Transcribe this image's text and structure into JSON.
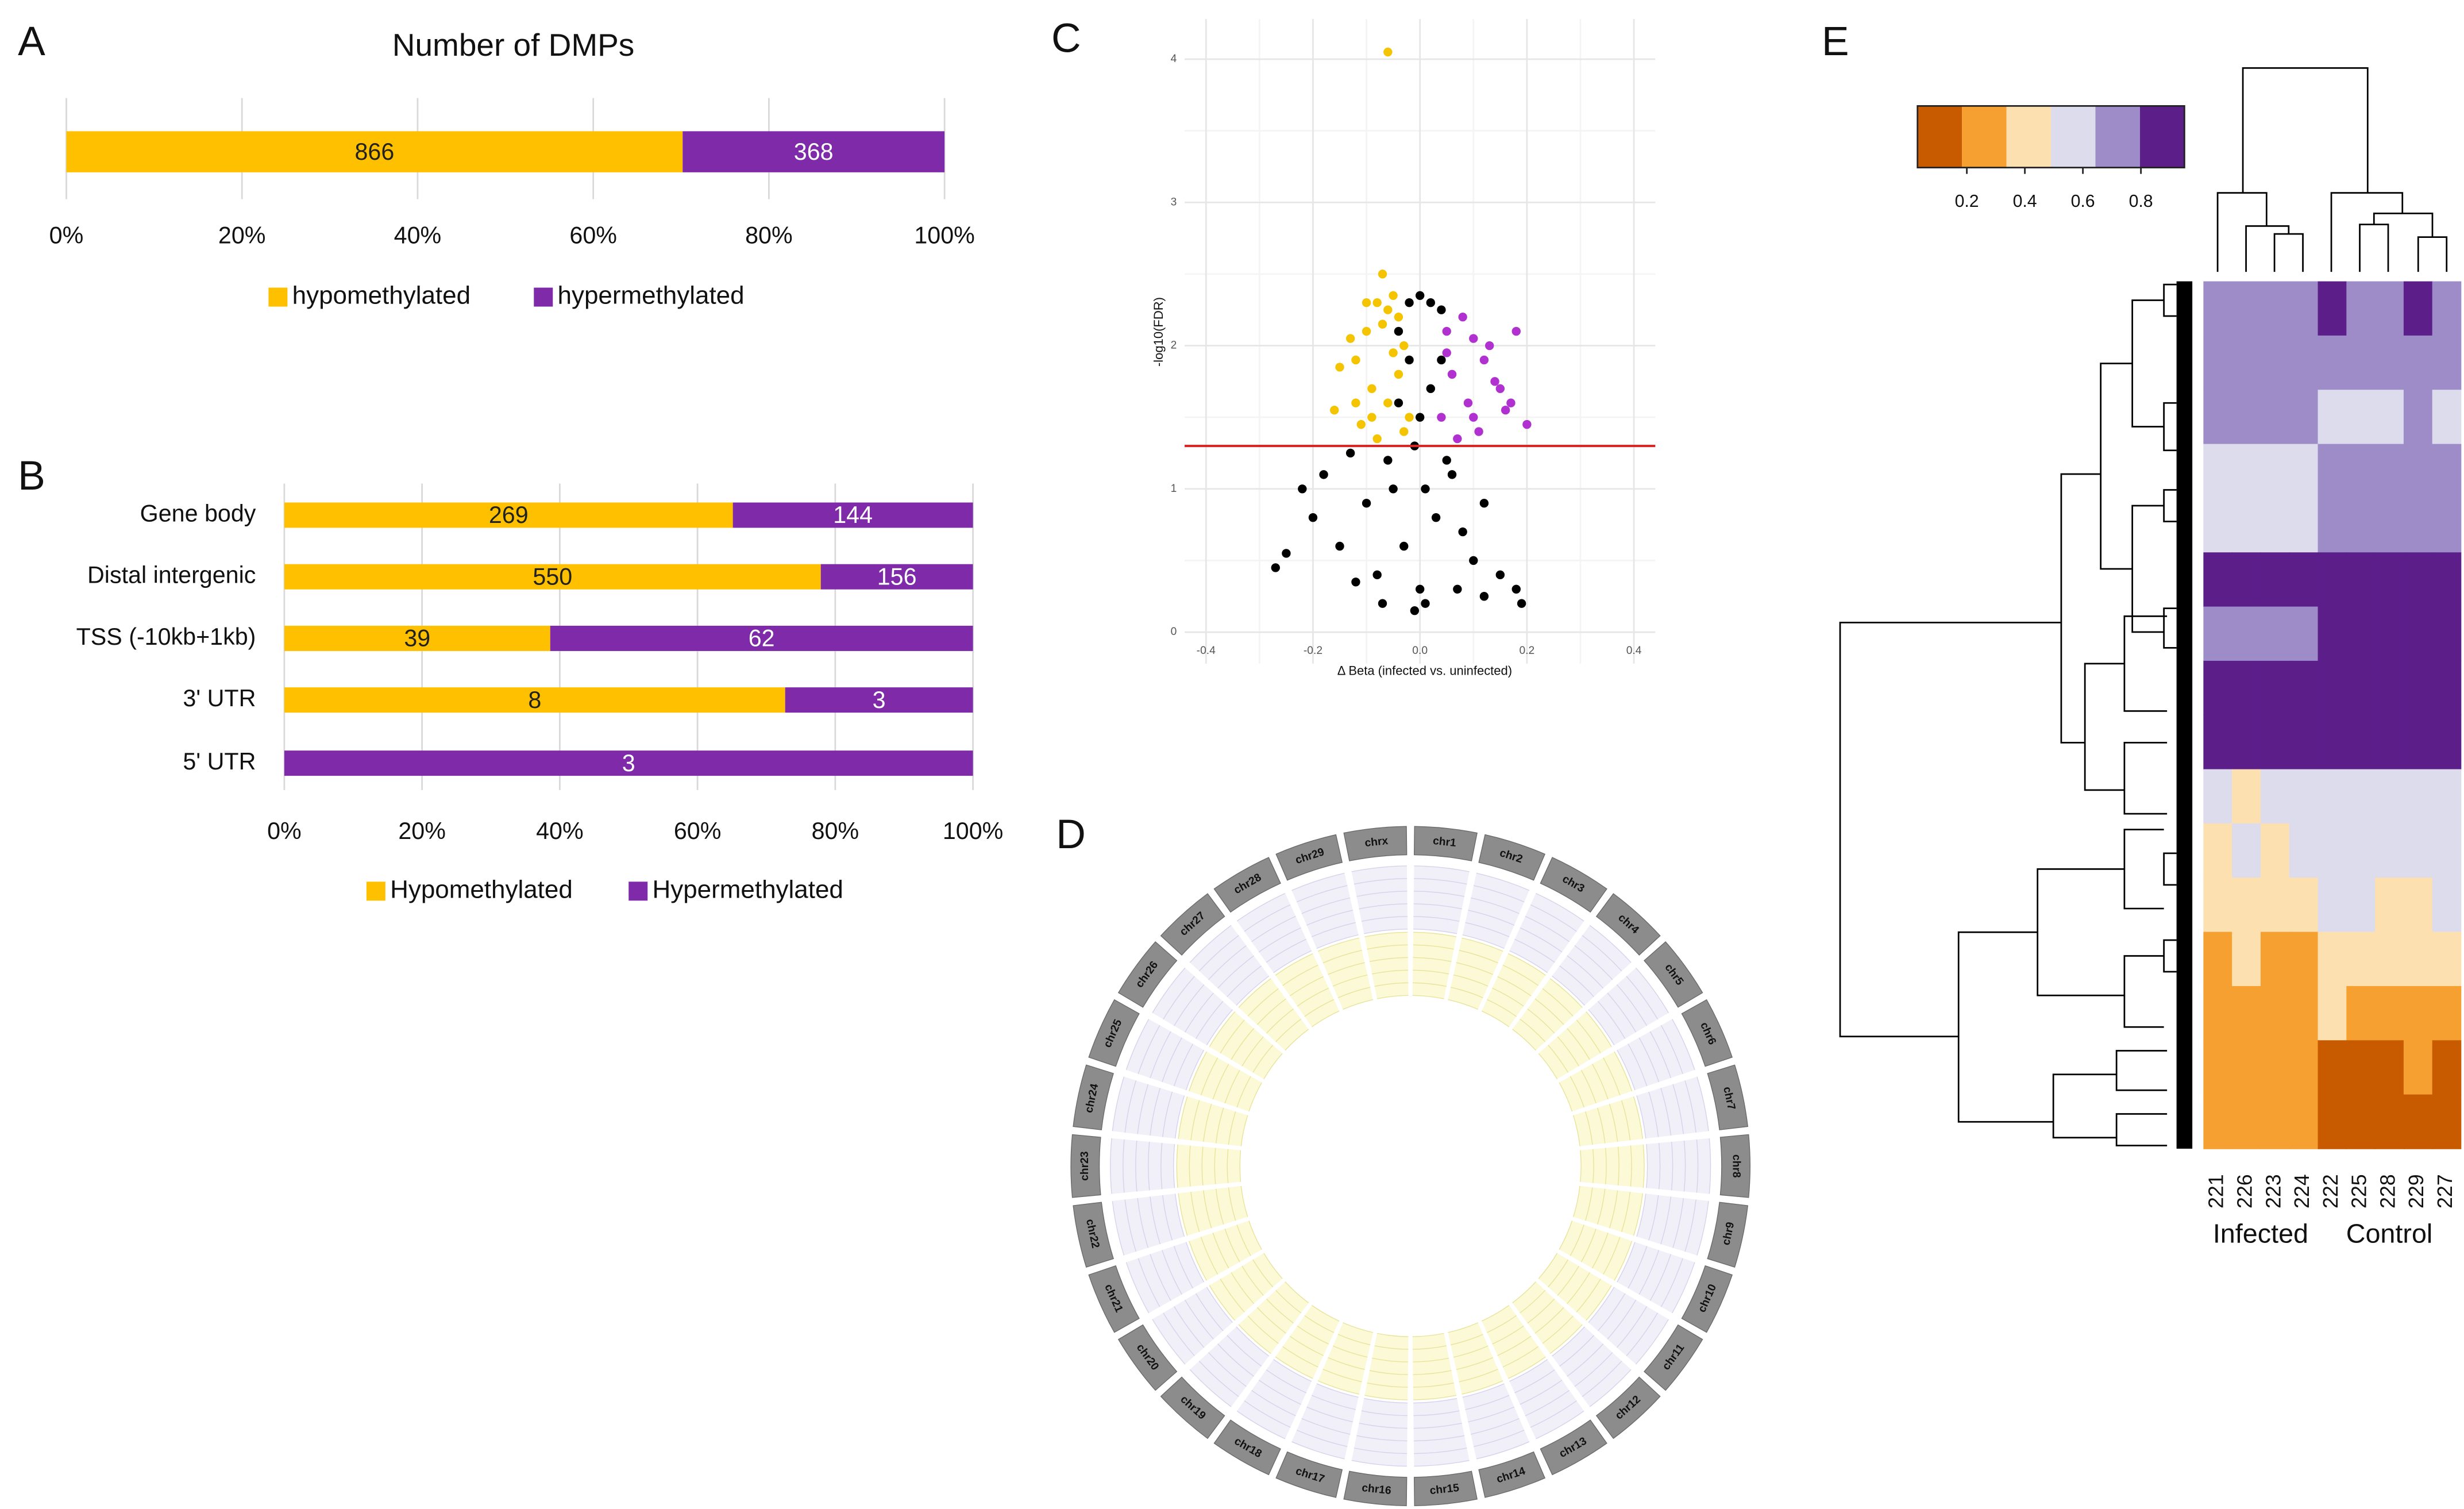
{
  "chart_data": [
    {
      "panel": "A",
      "type": "stacked_bar_percent",
      "title": "Number of DMPs",
      "series": [
        {
          "name": "hypomethylated",
          "color": "#FFC000",
          "values": [
            866
          ]
        },
        {
          "name": "hypermethylated",
          "color": "#7F2AA8",
          "values": [
            368
          ]
        }
      ],
      "xlim": [
        0,
        100
      ],
      "xticks": [
        {
          "value": 0,
          "label": "0%"
        },
        {
          "value": 20,
          "label": "20%"
        },
        {
          "value": 40,
          "label": "40%"
        },
        {
          "value": 60,
          "label": "60%"
        },
        {
          "value": 80,
          "label": "80%"
        },
        {
          "value": 100,
          "label": "100%"
        }
      ],
      "grid": true,
      "legend": "bottom"
    },
    {
      "panel": "B",
      "type": "stacked_bar_percent",
      "categories": [
        "Gene body",
        "Distal intergenic",
        "TSS (-10kb+1kb)",
        "3' UTR",
        "5' UTR"
      ],
      "series": [
        {
          "name": "Hypomethylated",
          "color": "#FFC000",
          "values": [
            269,
            550,
            39,
            8,
            0
          ]
        },
        {
          "name": "Hypermethylated",
          "color": "#7F2AA8",
          "values": [
            144,
            156,
            62,
            3,
            3
          ]
        }
      ],
      "xlim": [
        0,
        100
      ],
      "xticks": [
        {
          "value": 0,
          "label": "0%"
        },
        {
          "value": 20,
          "label": "20%"
        },
        {
          "value": 40,
          "label": "40%"
        },
        {
          "value": 60,
          "label": "60%"
        },
        {
          "value": 80,
          "label": "80%"
        },
        {
          "value": 100,
          "label": "100%"
        }
      ],
      "grid": true,
      "legend": "bottom"
    },
    {
      "panel": "C",
      "type": "scatter",
      "xlabel": "Δ Beta (infected vs. uninfected)",
      "ylabel": "-log10(FDR)",
      "xlim": [
        -0.44,
        0.44
      ],
      "ylim": [
        -0.22,
        4.28
      ],
      "xticks": [
        -0.4,
        -0.2,
        {
          "value": 0,
          "label": "0.0"
        },
        0.2,
        0.4
      ],
      "yticks": [
        0,
        1,
        2,
        3,
        4
      ],
      "grid": true,
      "hline": 1.3,
      "hline_color": "#D62728",
      "series": [
        {
          "color": "#000000",
          "x": [
            -0.27,
            -0.25,
            -0.22,
            -0.2,
            -0.18,
            -0.15,
            -0.13,
            -0.1,
            -0.08,
            -0.06,
            -0.04,
            -0.02,
            0,
            0.02,
            0.04,
            0.06,
            0.08,
            0.1,
            0.12,
            0.15,
            0.18,
            0.19,
            -0.01,
            0.01,
            -0.03,
            0.03,
            -0.05,
            0.05,
            0,
            -0.02,
            0.02,
            -0.04,
            0.04,
            0,
            -0.01,
            0.01,
            -0.07,
            0.07,
            -0.12,
            0.12
          ],
          "values": [
            0.45,
            0.55,
            1.0,
            0.8,
            1.1,
            0.6,
            1.25,
            0.9,
            0.4,
            1.2,
            1.6,
            2.3,
            2.35,
            2.3,
            1.9,
            1.1,
            0.7,
            0.5,
            0.9,
            0.4,
            0.3,
            0.2,
            0.15,
            0.2,
            0.6,
            0.8,
            1.0,
            1.2,
            1.5,
            1.9,
            1.7,
            2.1,
            2.25,
            0.3,
            1.3,
            1.0,
            0.2,
            0.3,
            0.35,
            0.25
          ]
        },
        {
          "color": "#F5C400",
          "x": [
            -0.06,
            -0.07,
            -0.16,
            -0.12,
            -0.1,
            -0.08,
            -0.05,
            -0.04,
            -0.03,
            -0.09,
            -0.11,
            -0.13,
            -0.06,
            -0.04,
            -0.02,
            -0.08,
            -0.05,
            -0.07,
            -0.1,
            -0.03,
            -0.15,
            -0.12,
            -0.06,
            -0.09
          ],
          "values": [
            4.05,
            2.5,
            1.55,
            1.9,
            2.1,
            2.3,
            2.35,
            2.2,
            2.0,
            1.7,
            1.45,
            2.05,
            1.6,
            1.8,
            1.5,
            1.35,
            1.95,
            2.15,
            2.3,
            1.4,
            1.85,
            1.6,
            2.25,
            1.5
          ]
        },
        {
          "color": "#B030D0",
          "x": [
            0.05,
            0.08,
            0.1,
            0.12,
            0.15,
            0.18,
            0.2,
            0.04,
            0.06,
            0.09,
            0.11,
            0.13,
            0.16,
            0.07,
            0.05,
            0.14,
            0.1,
            0.17
          ],
          "values": [
            2.1,
            2.2,
            2.05,
            1.9,
            1.7,
            2.1,
            1.45,
            1.5,
            1.8,
            1.6,
            1.4,
            2.0,
            1.55,
            1.35,
            1.95,
            1.75,
            1.5,
            1.6
          ]
        }
      ]
    },
    {
      "panel": "D",
      "type": "circos",
      "chromosomes": [
        "chr1",
        "chr2",
        "chr3",
        "chr4",
        "chr5",
        "chr6",
        "chr7",
        "chr8",
        "chr9",
        "chr10",
        "chr11",
        "chr12",
        "chr13",
        "chr14",
        "chr15",
        "chr16",
        "chr17",
        "chr18",
        "chr19",
        "chr20",
        "chr21",
        "chr22",
        "chr23",
        "chr24",
        "chr25",
        "chr26",
        "chr27",
        "chr28",
        "chr29",
        "chrx"
      ]
    },
    {
      "panel": "E",
      "type": "heatmap",
      "columns": [
        "221",
        "226",
        "223",
        "224",
        "222",
        "225",
        "228",
        "229",
        "227"
      ],
      "group_labels": [
        "Infected",
        "Control"
      ],
      "colors": [
        "#C85A00",
        "#F5A030",
        "#FDE0B0",
        "#DCDCEC",
        "#9E8CC8",
        "#5C1F8A"
      ],
      "clim": [
        0.03,
        0.95
      ],
      "cticks": [
        0.2,
        0.4,
        0.6,
        0.8
      ],
      "matrix": [
        [
          0.7,
          0.7,
          0.7,
          0.7,
          0.8,
          0.75,
          0.7,
          0.8,
          0.75
        ],
        [
          0.7,
          0.7,
          0.7,
          0.7,
          0.7,
          0.7,
          0.7,
          0.7,
          0.7
        ],
        [
          0.72,
          0.72,
          0.75,
          0.72,
          0.6,
          0.62,
          0.6,
          0.65,
          0.6
        ],
        [
          0.6,
          0.6,
          0.6,
          0.6,
          0.7,
          0.7,
          0.7,
          0.7,
          0.7
        ],
        [
          0.55,
          0.55,
          0.55,
          0.55,
          0.7,
          0.7,
          0.7,
          0.7,
          0.7
        ],
        [
          0.82,
          0.85,
          0.8,
          0.82,
          0.93,
          0.93,
          0.93,
          0.93,
          0.93
        ],
        [
          0.75,
          0.75,
          0.78,
          0.75,
          0.93,
          0.93,
          0.93,
          0.93,
          0.93
        ],
        [
          0.93,
          0.93,
          0.93,
          0.93,
          0.93,
          0.93,
          0.93,
          0.93,
          0.93
        ],
        [
          0.92,
          0.93,
          0.92,
          0.93,
          0.93,
          0.93,
          0.93,
          0.93,
          0.93
        ],
        [
          0.5,
          0.45,
          0.5,
          0.5,
          0.58,
          0.6,
          0.58,
          0.55,
          0.6
        ],
        [
          0.45,
          0.5,
          0.45,
          0.6,
          0.55,
          0.55,
          0.6,
          0.55,
          0.58
        ],
        [
          0.35,
          0.35,
          0.35,
          0.35,
          0.5,
          0.5,
          0.45,
          0.45,
          0.5
        ],
        [
          0.3,
          0.35,
          0.3,
          0.3,
          0.4,
          0.4,
          0.35,
          0.4,
          0.35
        ],
        [
          0.25,
          0.25,
          0.25,
          0.25,
          0.35,
          0.3,
          0.3,
          0.3,
          0.3
        ],
        [
          0.25,
          0.22,
          0.25,
          0.25,
          0.15,
          0.18,
          0.15,
          0.2,
          0.15
        ],
        [
          0.2,
          0.2,
          0.22,
          0.2,
          0.1,
          0.1,
          0.12,
          0.1,
          0.1
        ]
      ]
    }
  ]
}
